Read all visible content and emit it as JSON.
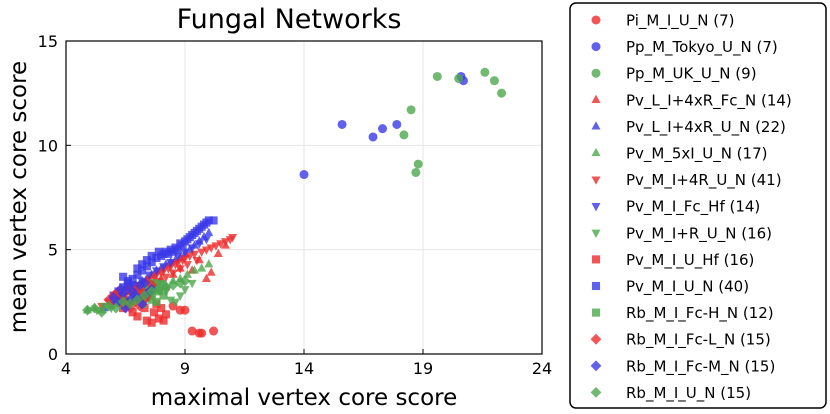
{
  "chart_data": {
    "type": "scatter",
    "title": "Fungal Networks",
    "xlabel": "maximal vertex core score",
    "ylabel": "mean vertex core score",
    "xlim": [
      4,
      24
    ],
    "ylim": [
      0,
      15
    ],
    "xticks": [
      4,
      9,
      14,
      19,
      24
    ],
    "yticks": [
      0,
      5,
      10,
      15
    ],
    "grid": true,
    "legend_position": "right, outside",
    "series": [
      {
        "name": "Pi_M_I_U_N (7)",
        "color": "#ee2a2a",
        "marker": "circle",
        "points": [
          [
            9.3,
            1.1
          ],
          [
            9.6,
            1.0
          ],
          [
            9.7,
            1.0
          ],
          [
            10.2,
            1.1
          ],
          [
            9.0,
            2.1
          ],
          [
            8.8,
            2.1
          ],
          [
            8.5,
            2.3
          ]
        ]
      },
      {
        "name": "Pp_M_Tokyo_U_N (7)",
        "color": "#3a3ae8",
        "marker": "circle",
        "points": [
          [
            14.0,
            8.6
          ],
          [
            15.6,
            11.0
          ],
          [
            16.9,
            10.4
          ],
          [
            17.3,
            10.8
          ],
          [
            17.9,
            11.0
          ],
          [
            20.7,
            13.1
          ],
          [
            20.6,
            13.3
          ]
        ]
      },
      {
        "name": "Pp_M_UK_U_N (9)",
        "color": "#4da64d",
        "marker": "circle",
        "points": [
          [
            18.7,
            8.7
          ],
          [
            18.8,
            9.1
          ],
          [
            18.2,
            10.5
          ],
          [
            18.5,
            11.7
          ],
          [
            19.6,
            13.3
          ],
          [
            20.5,
            13.2
          ],
          [
            21.6,
            13.5
          ],
          [
            22.0,
            13.1
          ],
          [
            22.3,
            12.5
          ]
        ]
      },
      {
        "name": "Pv_L_I+4xR_Fc_N (14)",
        "color": "#ee2a2a",
        "marker": "triangle-up",
        "points": [
          [
            6.5,
            2.7
          ],
          [
            6.9,
            3.0
          ],
          [
            7.3,
            3.1
          ],
          [
            7.7,
            3.4
          ],
          [
            8.0,
            3.6
          ],
          [
            8.2,
            3.2
          ],
          [
            8.5,
            3.8
          ],
          [
            8.8,
            4.1
          ],
          [
            9.3,
            4.0
          ],
          [
            9.6,
            4.5
          ],
          [
            9.9,
            3.6
          ],
          [
            10.1,
            3.9
          ],
          [
            10.4,
            4.8
          ],
          [
            10.7,
            5.2
          ]
        ]
      },
      {
        "name": "Pv_L_I+4xR_U_N (22)",
        "color": "#3a3ae8",
        "marker": "triangle-up",
        "points": [
          [
            5.6,
            2.2
          ],
          [
            5.9,
            2.4
          ],
          [
            6.2,
            2.6
          ],
          [
            6.4,
            2.8
          ],
          [
            6.6,
            3.0
          ],
          [
            6.8,
            3.1
          ],
          [
            7.0,
            3.2
          ],
          [
            7.2,
            3.5
          ],
          [
            7.4,
            3.6
          ],
          [
            7.6,
            3.8
          ],
          [
            7.8,
            4.0
          ],
          [
            8.0,
            4.1
          ],
          [
            8.2,
            4.3
          ],
          [
            8.4,
            4.4
          ],
          [
            8.6,
            4.5
          ],
          [
            8.8,
            4.6
          ],
          [
            9.0,
            4.8
          ],
          [
            9.2,
            5.0
          ],
          [
            9.4,
            5.2
          ],
          [
            9.6,
            5.4
          ],
          [
            9.8,
            5.6
          ],
          [
            10.0,
            5.8
          ]
        ]
      },
      {
        "name": "Pv_M_5xI_U_N (17)",
        "color": "#4da64d",
        "marker": "triangle-up",
        "points": [
          [
            4.9,
            2.1
          ],
          [
            5.2,
            2.2
          ],
          [
            5.5,
            2.1
          ],
          [
            5.9,
            2.3
          ],
          [
            6.3,
            2.4
          ],
          [
            6.7,
            2.5
          ],
          [
            7.0,
            2.7
          ],
          [
            7.3,
            2.8
          ],
          [
            7.6,
            3.0
          ],
          [
            7.9,
            3.1
          ],
          [
            8.2,
            3.3
          ],
          [
            8.5,
            3.5
          ],
          [
            8.8,
            3.6
          ],
          [
            9.1,
            3.8
          ],
          [
            9.4,
            4.0
          ],
          [
            9.7,
            4.1
          ],
          [
            10.0,
            4.3
          ]
        ]
      },
      {
        "name": "Pv_M_I+4R_U_N (41)",
        "color": "#ee2a2a",
        "marker": "triangle-down",
        "points": [
          [
            5.5,
            2.3
          ],
          [
            5.8,
            2.5
          ],
          [
            6.0,
            2.4
          ],
          [
            6.1,
            2.7
          ],
          [
            6.3,
            2.8
          ],
          [
            6.5,
            2.6
          ],
          [
            6.6,
            3.0
          ],
          [
            6.8,
            3.1
          ],
          [
            6.9,
            2.9
          ],
          [
            7.0,
            3.2
          ],
          [
            7.2,
            3.3
          ],
          [
            7.3,
            3.0
          ],
          [
            7.4,
            3.5
          ],
          [
            7.5,
            3.6
          ],
          [
            7.6,
            3.4
          ],
          [
            7.7,
            3.7
          ],
          [
            7.8,
            3.8
          ],
          [
            7.9,
            3.5
          ],
          [
            8.0,
            3.9
          ],
          [
            8.1,
            4.0
          ],
          [
            8.2,
            3.7
          ],
          [
            8.3,
            4.1
          ],
          [
            8.4,
            4.2
          ],
          [
            8.5,
            3.9
          ],
          [
            8.6,
            4.3
          ],
          [
            8.7,
            4.4
          ],
          [
            8.8,
            4.1
          ],
          [
            8.9,
            4.5
          ],
          [
            9.0,
            4.6
          ],
          [
            9.1,
            4.3
          ],
          [
            9.2,
            4.7
          ],
          [
            9.4,
            4.8
          ],
          [
            9.5,
            4.5
          ],
          [
            9.7,
            4.9
          ],
          [
            9.9,
            5.0
          ],
          [
            10.1,
            5.1
          ],
          [
            10.3,
            5.2
          ],
          [
            10.5,
            5.3
          ],
          [
            10.7,
            5.4
          ],
          [
            10.9,
            5.5
          ],
          [
            11.0,
            5.6
          ]
        ]
      },
      {
        "name": "Pv_M_I_Fc_Hf (14)",
        "color": "#3a3ae8",
        "marker": "triangle-down",
        "points": [
          [
            6.0,
            2.6
          ],
          [
            6.3,
            2.9
          ],
          [
            6.6,
            3.1
          ],
          [
            6.9,
            3.3
          ],
          [
            7.2,
            3.5
          ],
          [
            7.5,
            3.8
          ],
          [
            7.8,
            4.0
          ],
          [
            8.1,
            4.2
          ],
          [
            8.4,
            4.4
          ],
          [
            8.7,
            4.7
          ],
          [
            9.0,
            4.9
          ],
          [
            9.3,
            5.1
          ],
          [
            9.6,
            5.3
          ],
          [
            9.9,
            5.5
          ]
        ]
      },
      {
        "name": "Pv_M_I+R_U_N (16)",
        "color": "#4da64d",
        "marker": "triangle-down",
        "points": [
          [
            5.3,
            2.1
          ],
          [
            5.6,
            2.3
          ],
          [
            5.9,
            2.2
          ],
          [
            6.2,
            2.5
          ],
          [
            6.5,
            2.6
          ],
          [
            6.8,
            2.8
          ],
          [
            7.1,
            2.9
          ],
          [
            7.4,
            3.1
          ],
          [
            7.7,
            3.2
          ],
          [
            8.0,
            3.4
          ],
          [
            8.2,
            3.0
          ],
          [
            8.4,
            2.6
          ],
          [
            8.6,
            2.5
          ],
          [
            8.8,
            2.8
          ],
          [
            9.0,
            3.1
          ],
          [
            9.3,
            3.4
          ]
        ]
      },
      {
        "name": "Pv_M_I_U_Hf (16)",
        "color": "#ee2a2a",
        "marker": "square",
        "points": [
          [
            6.4,
            2.2
          ],
          [
            6.6,
            2.4
          ],
          [
            6.8,
            2.0
          ],
          [
            7.0,
            1.8
          ],
          [
            7.1,
            2.6
          ],
          [
            7.3,
            2.2
          ],
          [
            7.4,
            1.6
          ],
          [
            7.5,
            2.8
          ],
          [
            7.6,
            1.5
          ],
          [
            7.7,
            2.0
          ],
          [
            7.8,
            2.4
          ],
          [
            7.9,
            1.7
          ],
          [
            8.0,
            2.2
          ],
          [
            8.1,
            1.6
          ],
          [
            8.2,
            1.9
          ],
          [
            7.2,
            3.0
          ]
        ]
      },
      {
        "name": "Pv_M_I_U_N (40)",
        "color": "#3a3ae8",
        "marker": "square",
        "points": [
          [
            6.0,
            2.8
          ],
          [
            6.2,
            3.0
          ],
          [
            6.4,
            3.2
          ],
          [
            6.6,
            3.4
          ],
          [
            6.8,
            3.6
          ],
          [
            7.0,
            3.8
          ],
          [
            7.2,
            4.0
          ],
          [
            7.4,
            4.2
          ],
          [
            7.6,
            4.4
          ],
          [
            7.8,
            4.6
          ],
          [
            8.0,
            4.7
          ],
          [
            8.2,
            4.9
          ],
          [
            8.4,
            5.0
          ],
          [
            8.6,
            5.1
          ],
          [
            8.8,
            5.3
          ],
          [
            9.0,
            5.4
          ],
          [
            9.2,
            5.6
          ],
          [
            9.4,
            5.8
          ],
          [
            9.6,
            6.0
          ],
          [
            9.8,
            6.2
          ],
          [
            10.0,
            6.4
          ],
          [
            10.2,
            6.4
          ],
          [
            7.9,
            4.9
          ],
          [
            8.1,
            4.8
          ],
          [
            8.3,
            4.8
          ],
          [
            8.5,
            4.9
          ],
          [
            8.7,
            5.0
          ],
          [
            8.9,
            5.2
          ],
          [
            9.1,
            5.5
          ],
          [
            9.3,
            5.7
          ],
          [
            9.5,
            5.9
          ],
          [
            9.7,
            6.1
          ],
          [
            9.9,
            6.3
          ],
          [
            7.6,
            4.7
          ],
          [
            7.4,
            4.5
          ],
          [
            7.2,
            4.3
          ],
          [
            7.0,
            4.1
          ],
          [
            6.8,
            3.3
          ],
          [
            6.6,
            3.5
          ],
          [
            6.4,
            3.7
          ]
        ]
      },
      {
        "name": "Rb_M_I_Fc-H_N (12)",
        "color": "#4da64d",
        "marker": "square",
        "points": [
          [
            7.2,
            2.4
          ],
          [
            7.4,
            2.7
          ],
          [
            7.6,
            2.9
          ],
          [
            7.8,
            3.1
          ],
          [
            8.0,
            3.3
          ],
          [
            7.5,
            3.2
          ],
          [
            7.7,
            3.4
          ],
          [
            7.9,
            3.0
          ],
          [
            8.1,
            2.8
          ],
          [
            7.3,
            3.1
          ],
          [
            7.6,
            2.6
          ],
          [
            7.8,
            2.5
          ]
        ]
      },
      {
        "name": "Rb_M_I_Fc-L_N (15)",
        "color": "#ee2a2a",
        "marker": "diamond",
        "points": [
          [
            5.8,
            2.6
          ],
          [
            6.0,
            2.8
          ],
          [
            6.2,
            3.0
          ],
          [
            6.4,
            2.7
          ],
          [
            6.6,
            3.1
          ],
          [
            6.8,
            2.9
          ],
          [
            7.0,
            3.2
          ],
          [
            7.2,
            3.0
          ],
          [
            7.4,
            2.8
          ],
          [
            7.6,
            3.3
          ],
          [
            6.5,
            2.4
          ],
          [
            6.7,
            2.2
          ],
          [
            6.9,
            2.5
          ],
          [
            7.1,
            2.3
          ],
          [
            7.3,
            2.6
          ]
        ]
      },
      {
        "name": "Rb_M_I_Fc-M_N (15)",
        "color": "#3a3ae8",
        "marker": "diamond",
        "points": [
          [
            6.2,
            2.5
          ],
          [
            6.4,
            2.9
          ],
          [
            6.6,
            3.2
          ],
          [
            6.8,
            3.0
          ],
          [
            7.0,
            2.7
          ],
          [
            7.2,
            2.4
          ],
          [
            7.4,
            2.9
          ],
          [
            7.6,
            3.1
          ],
          [
            6.5,
            2.2
          ],
          [
            6.7,
            2.6
          ],
          [
            6.9,
            2.8
          ],
          [
            7.1,
            3.3
          ],
          [
            7.3,
            3.4
          ],
          [
            6.3,
            3.1
          ],
          [
            6.0,
            2.7
          ]
        ]
      },
      {
        "name": "Rb_M_I_U_N (15)",
        "color": "#4da64d",
        "marker": "diamond",
        "points": [
          [
            4.9,
            2.1
          ],
          [
            5.2,
            2.2
          ],
          [
            5.5,
            2.0
          ],
          [
            5.8,
            2.3
          ],
          [
            6.1,
            2.2
          ],
          [
            6.4,
            2.5
          ],
          [
            6.7,
            2.4
          ],
          [
            7.0,
            2.6
          ],
          [
            7.3,
            2.8
          ],
          [
            7.6,
            3.0
          ],
          [
            7.9,
            3.1
          ],
          [
            8.2,
            3.2
          ],
          [
            8.5,
            3.3
          ],
          [
            8.8,
            3.4
          ],
          [
            9.0,
            3.5
          ]
        ]
      }
    ]
  }
}
